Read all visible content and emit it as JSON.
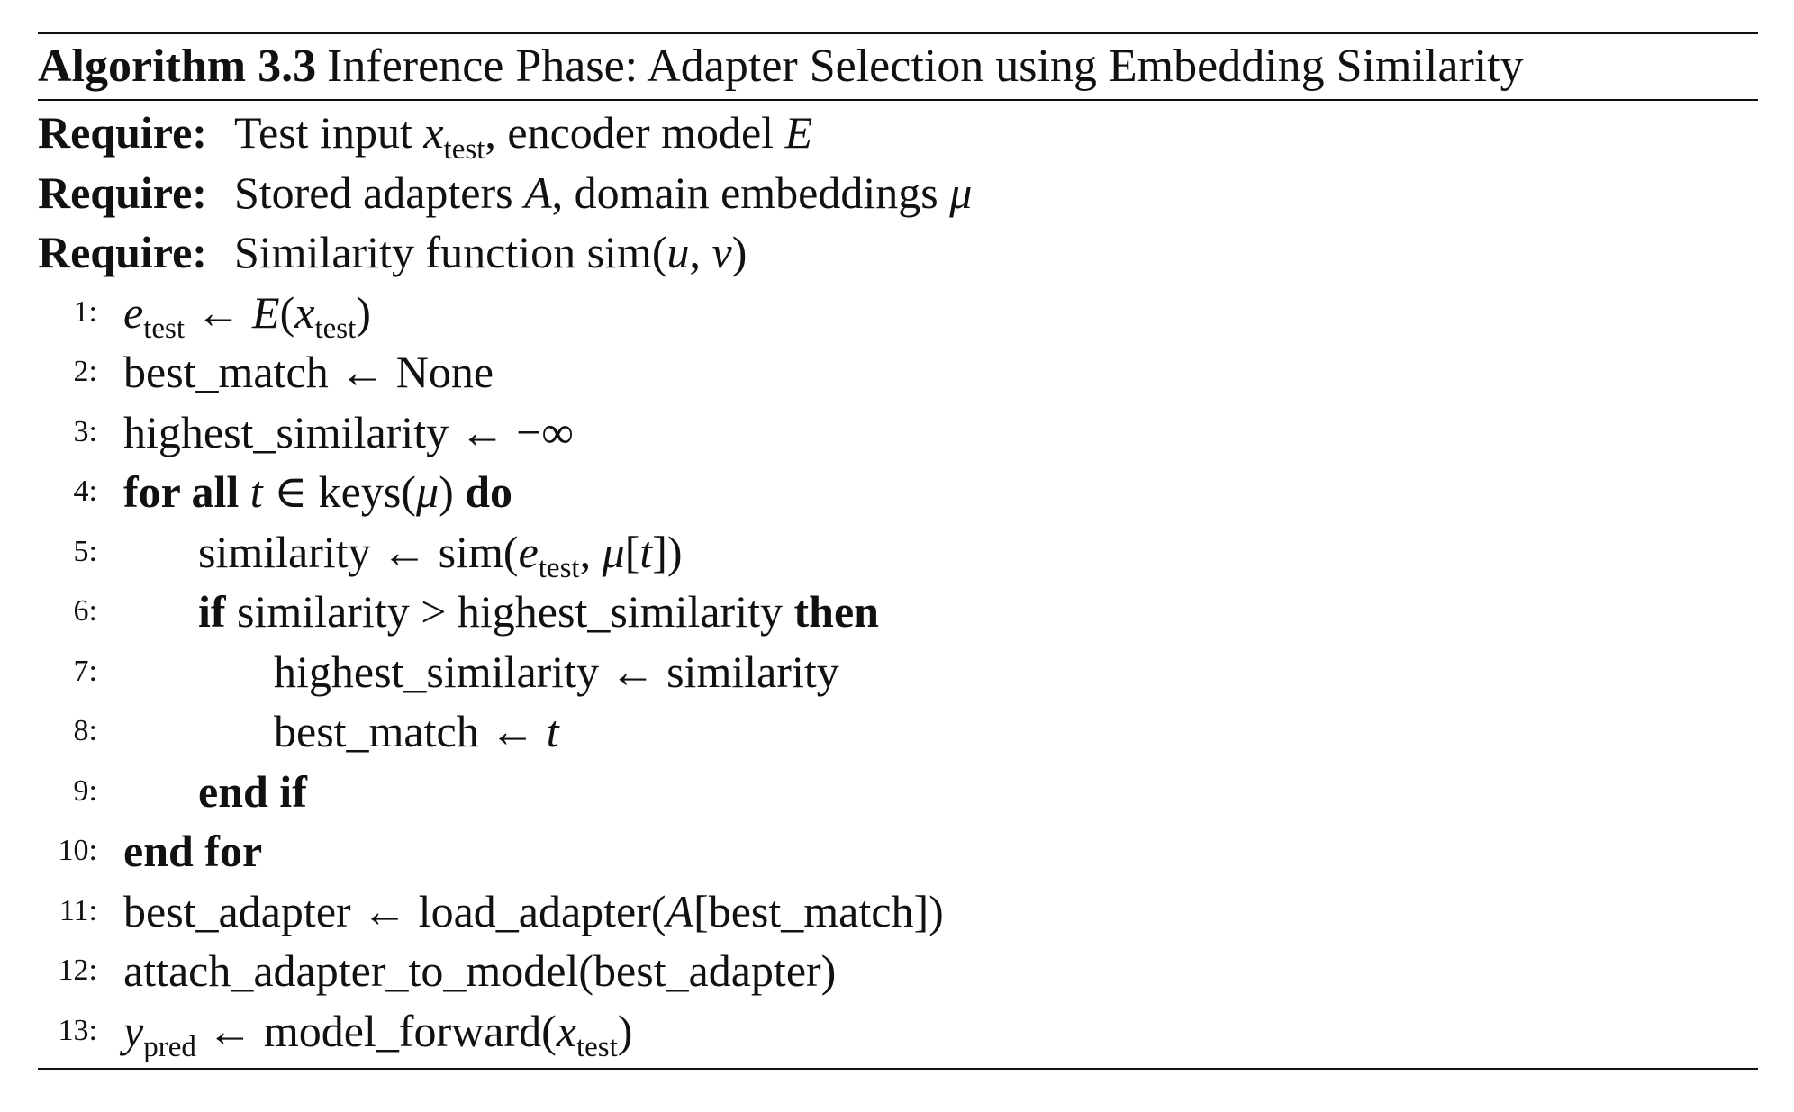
{
  "algorithm": {
    "label": "Algorithm 3.3",
    "title": "Inference Phase: Adapter Selection using Embedding Similarity"
  },
  "requires": [
    {
      "keyword": "Require:",
      "text_a": "Test input ",
      "var1": "x",
      "sub1": "test",
      "text_b": ", encoder model ",
      "var2": "E"
    },
    {
      "keyword": "Require:",
      "text_a": "Stored adapters ",
      "var1": "A",
      "text_b": ", domain embeddings ",
      "var2": "μ"
    },
    {
      "keyword": "Require:",
      "text_a": "Similarity function sim(",
      "var1": "u",
      "sep": ", ",
      "var2": "v",
      "text_b": ")"
    }
  ],
  "steps": [
    {
      "num": "1:"
    },
    {
      "num": "2:",
      "lhs": "best_match",
      "arrow": "←",
      "rhs": "None"
    },
    {
      "num": "3:",
      "lhs": "highest_similarity",
      "arrow": "←",
      "rhs": "−∞"
    },
    {
      "num": "4:",
      "kw1": "for all",
      "var": "t",
      "mid": " ∈ keys(",
      "mu": "μ",
      "close": ")",
      "kw2": "do"
    },
    {
      "num": "5:",
      "lhs": "similarity",
      "arrow": "←",
      "rhs_a": "sim(",
      "e": "e",
      "sub": "test",
      "rhs_b": ", ",
      "mu": "μ",
      "rhs_c": "[",
      "t": "t",
      "rhs_d": "])"
    },
    {
      "num": "6:",
      "kw1": "if",
      "text": " similarity > highest_similarity ",
      "kw2": "then"
    },
    {
      "num": "7:",
      "lhs": "highest_similarity",
      "arrow": "←",
      "rhs": "similarity"
    },
    {
      "num": "8:",
      "lhs": "best_match",
      "arrow": "←",
      "var": "t"
    },
    {
      "num": "9:",
      "kw1": "end if"
    },
    {
      "num": "10:",
      "kw1": "end for"
    },
    {
      "num": "11:",
      "lhs": "best_adapter",
      "arrow": "←",
      "rhs_a": "load_adapter(",
      "var": "A",
      "rhs_b": "[best_match])"
    },
    {
      "num": "12:",
      "text": "attach_adapter_to_model(best_adapter)"
    },
    {
      "num": "13:",
      "var": "y",
      "sub": "pred",
      "arrow": "←",
      "rhs_a": "model_forward(",
      "x": "x",
      "xsub": "test",
      "rhs_b": ")"
    }
  ],
  "step1": {
    "e": "e",
    "esub": "test",
    "arrow": "←",
    "E": "E",
    "open": "(",
    "x": "x",
    "xsub": "test",
    "close": ")"
  }
}
